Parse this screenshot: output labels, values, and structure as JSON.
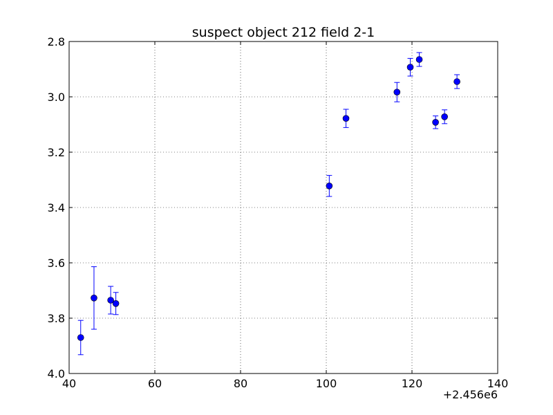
{
  "chart_data": {
    "type": "scatter",
    "title": "suspect object 212 field 2-1",
    "xlabel": "",
    "ylabel": "",
    "x_offset_label": "+2.456e6",
    "xlim": [
      40,
      140
    ],
    "ylim": [
      4.0,
      2.8
    ],
    "y_inverted": true,
    "grid": true,
    "xticks": [
      40,
      60,
      80,
      100,
      120,
      140
    ],
    "yticks": [
      2.8,
      3.0,
      3.2,
      3.4,
      3.6,
      3.8,
      4.0
    ],
    "xtick_labels": [
      "40",
      "60",
      "80",
      "100",
      "120",
      "140"
    ],
    "ytick_labels": [
      "2.8",
      "3.0",
      "3.2",
      "3.4",
      "3.6",
      "3.8",
      "4.0"
    ],
    "marker_color": "#0000ff",
    "points": [
      {
        "x": 42.7,
        "y": 3.87,
        "yerr": 0.062
      },
      {
        "x": 45.8,
        "y": 3.727,
        "yerr": 0.113
      },
      {
        "x": 49.7,
        "y": 3.735,
        "yerr": 0.05
      },
      {
        "x": 50.9,
        "y": 3.747,
        "yerr": 0.04
      },
      {
        "x": 100.7,
        "y": 3.322,
        "yerr": 0.038
      },
      {
        "x": 104.6,
        "y": 3.078,
        "yerr": 0.033
      },
      {
        "x": 116.5,
        "y": 2.983,
        "yerr": 0.035
      },
      {
        "x": 119.6,
        "y": 2.893,
        "yerr": 0.032
      },
      {
        "x": 121.7,
        "y": 2.865,
        "yerr": 0.025
      },
      {
        "x": 125.5,
        "y": 3.092,
        "yerr": 0.023
      },
      {
        "x": 127.6,
        "y": 3.072,
        "yerr": 0.025
      },
      {
        "x": 130.5,
        "y": 2.945,
        "yerr": 0.025
      }
    ]
  }
}
